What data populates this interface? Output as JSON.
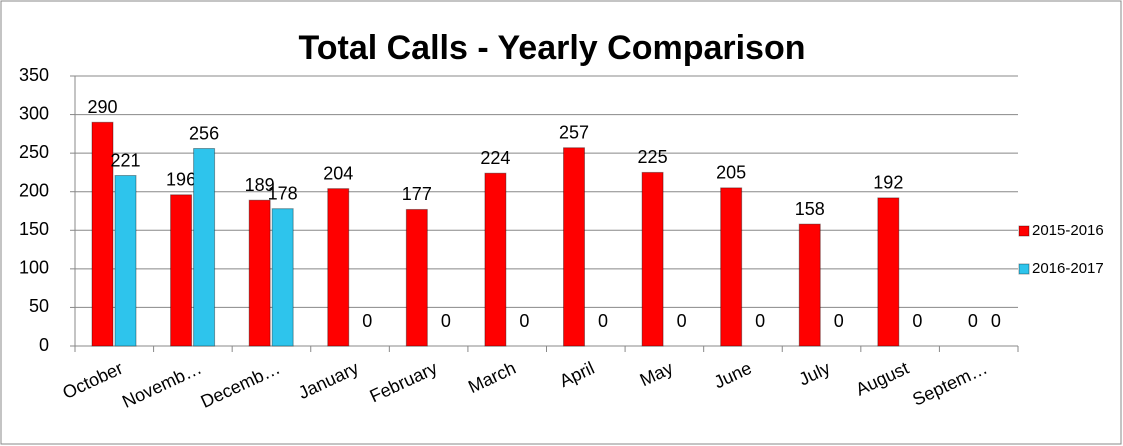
{
  "chart_data": {
    "type": "bar",
    "title": "Total Calls - Yearly Comparison",
    "categories": [
      "October",
      "Novemb…",
      "Decemb…",
      "January",
      "February",
      "March",
      "April",
      "May",
      "June",
      "July",
      "August",
      "Septem…"
    ],
    "series": [
      {
        "name": "2015-2016",
        "color": "#ff0000",
        "values": [
          290,
          196,
          189,
          204,
          177,
          224,
          257,
          225,
          205,
          158,
          192,
          0
        ]
      },
      {
        "name": "2016-2017",
        "color": "#2ec4ec",
        "values": [
          221,
          256,
          178,
          0,
          0,
          0,
          0,
          0,
          0,
          0,
          0,
          0
        ]
      }
    ],
    "ylim": [
      0,
      350
    ],
    "yticks": [
      0,
      50,
      100,
      150,
      200,
      250,
      300,
      350
    ],
    "grid": true,
    "legend": "right"
  }
}
